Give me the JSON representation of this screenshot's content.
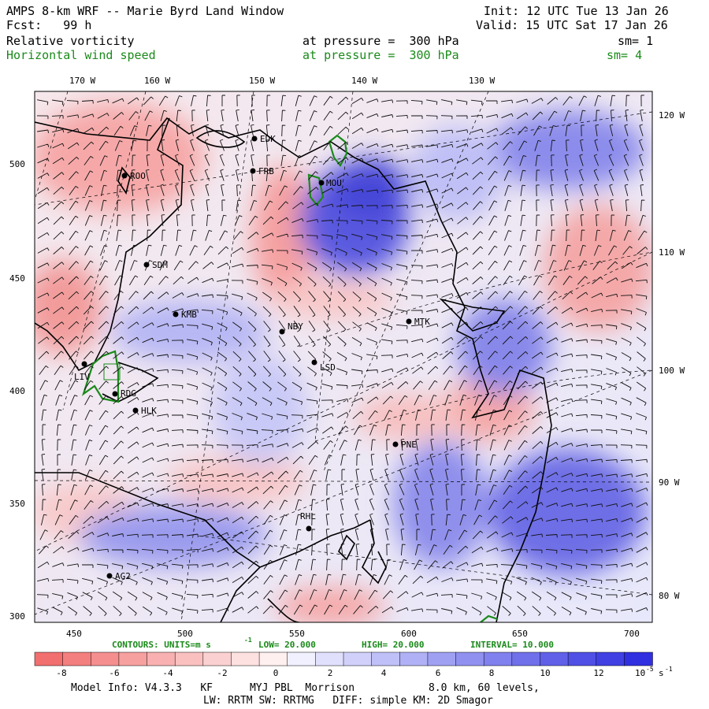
{
  "header": {
    "title": "AMPS 8-km WRF -- Marie Byrd Land Window",
    "init": "Init: 12 UTC Tue 13 Jan 26",
    "fcst": "Fcst:   99 h",
    "valid": "Valid: 15 UTC Sat 17 Jan 26",
    "field1_name": "Relative vorticity",
    "field1_level": "at pressure =  300 hPa",
    "field1_sm": "sm= 1",
    "field2_name": "Horizontal wind speed",
    "field2_level": "at pressure =  300 hPa",
    "field2_sm": "sm= 4"
  },
  "colors": {
    "green_text": "#1a8a1a",
    "contour_green": "#1a8a1a",
    "red_max": "#f07070",
    "blue_max": "#3d3de0",
    "neutral": "#ffffff"
  },
  "map": {
    "lon_labels_top": [
      "170 W",
      "160 W",
      "150 W",
      "140 W",
      "130 W"
    ],
    "lon_labels_right": [
      "120 W",
      "110 W",
      "100 W",
      "90 W",
      "80 W"
    ],
    "y_ticks": [
      "500",
      "450",
      "400",
      "350",
      "300"
    ],
    "x_ticks": [
      "450",
      "500",
      "550",
      "600",
      "650",
      "700"
    ],
    "stations": [
      {
        "id": "ROO"
      },
      {
        "id": "FRB"
      },
      {
        "id": "EDK"
      },
      {
        "id": "MOU"
      },
      {
        "id": "SDM"
      },
      {
        "id": "KMB"
      },
      {
        "id": "NBY"
      },
      {
        "id": "MTK"
      },
      {
        "id": "LIV"
      },
      {
        "id": "LSD"
      },
      {
        "id": "RDG"
      },
      {
        "id": "HLK"
      },
      {
        "id": "PNE"
      },
      {
        "id": "RHL"
      },
      {
        "id": "AG2"
      }
    ]
  },
  "contour_line": "CONTOURS:  UNITS=m s",
  "contour_low": "LOW=  20.000",
  "contour_high": "HIGH=  20.000",
  "contour_interval": "INTERVAL=  10.000",
  "colorbar": {
    "tick_labels": [
      "-8",
      "-6",
      "-4",
      "-2",
      "0",
      "2",
      "4",
      "6",
      "8",
      "10",
      "12"
    ],
    "unit_label": "10",
    "unit_exp": "-5",
    "unit_suffix": "s",
    "unit_suffix_exp": "-1"
  },
  "footer": {
    "line1": "Model Info: V4.3.3   KF      MYJ PBL  Morrison            8.0 km, 60 levels,",
    "line2": "LW: RRTM SW: RRTMG   DIFF: simple KM: 2D Smagor"
  }
}
